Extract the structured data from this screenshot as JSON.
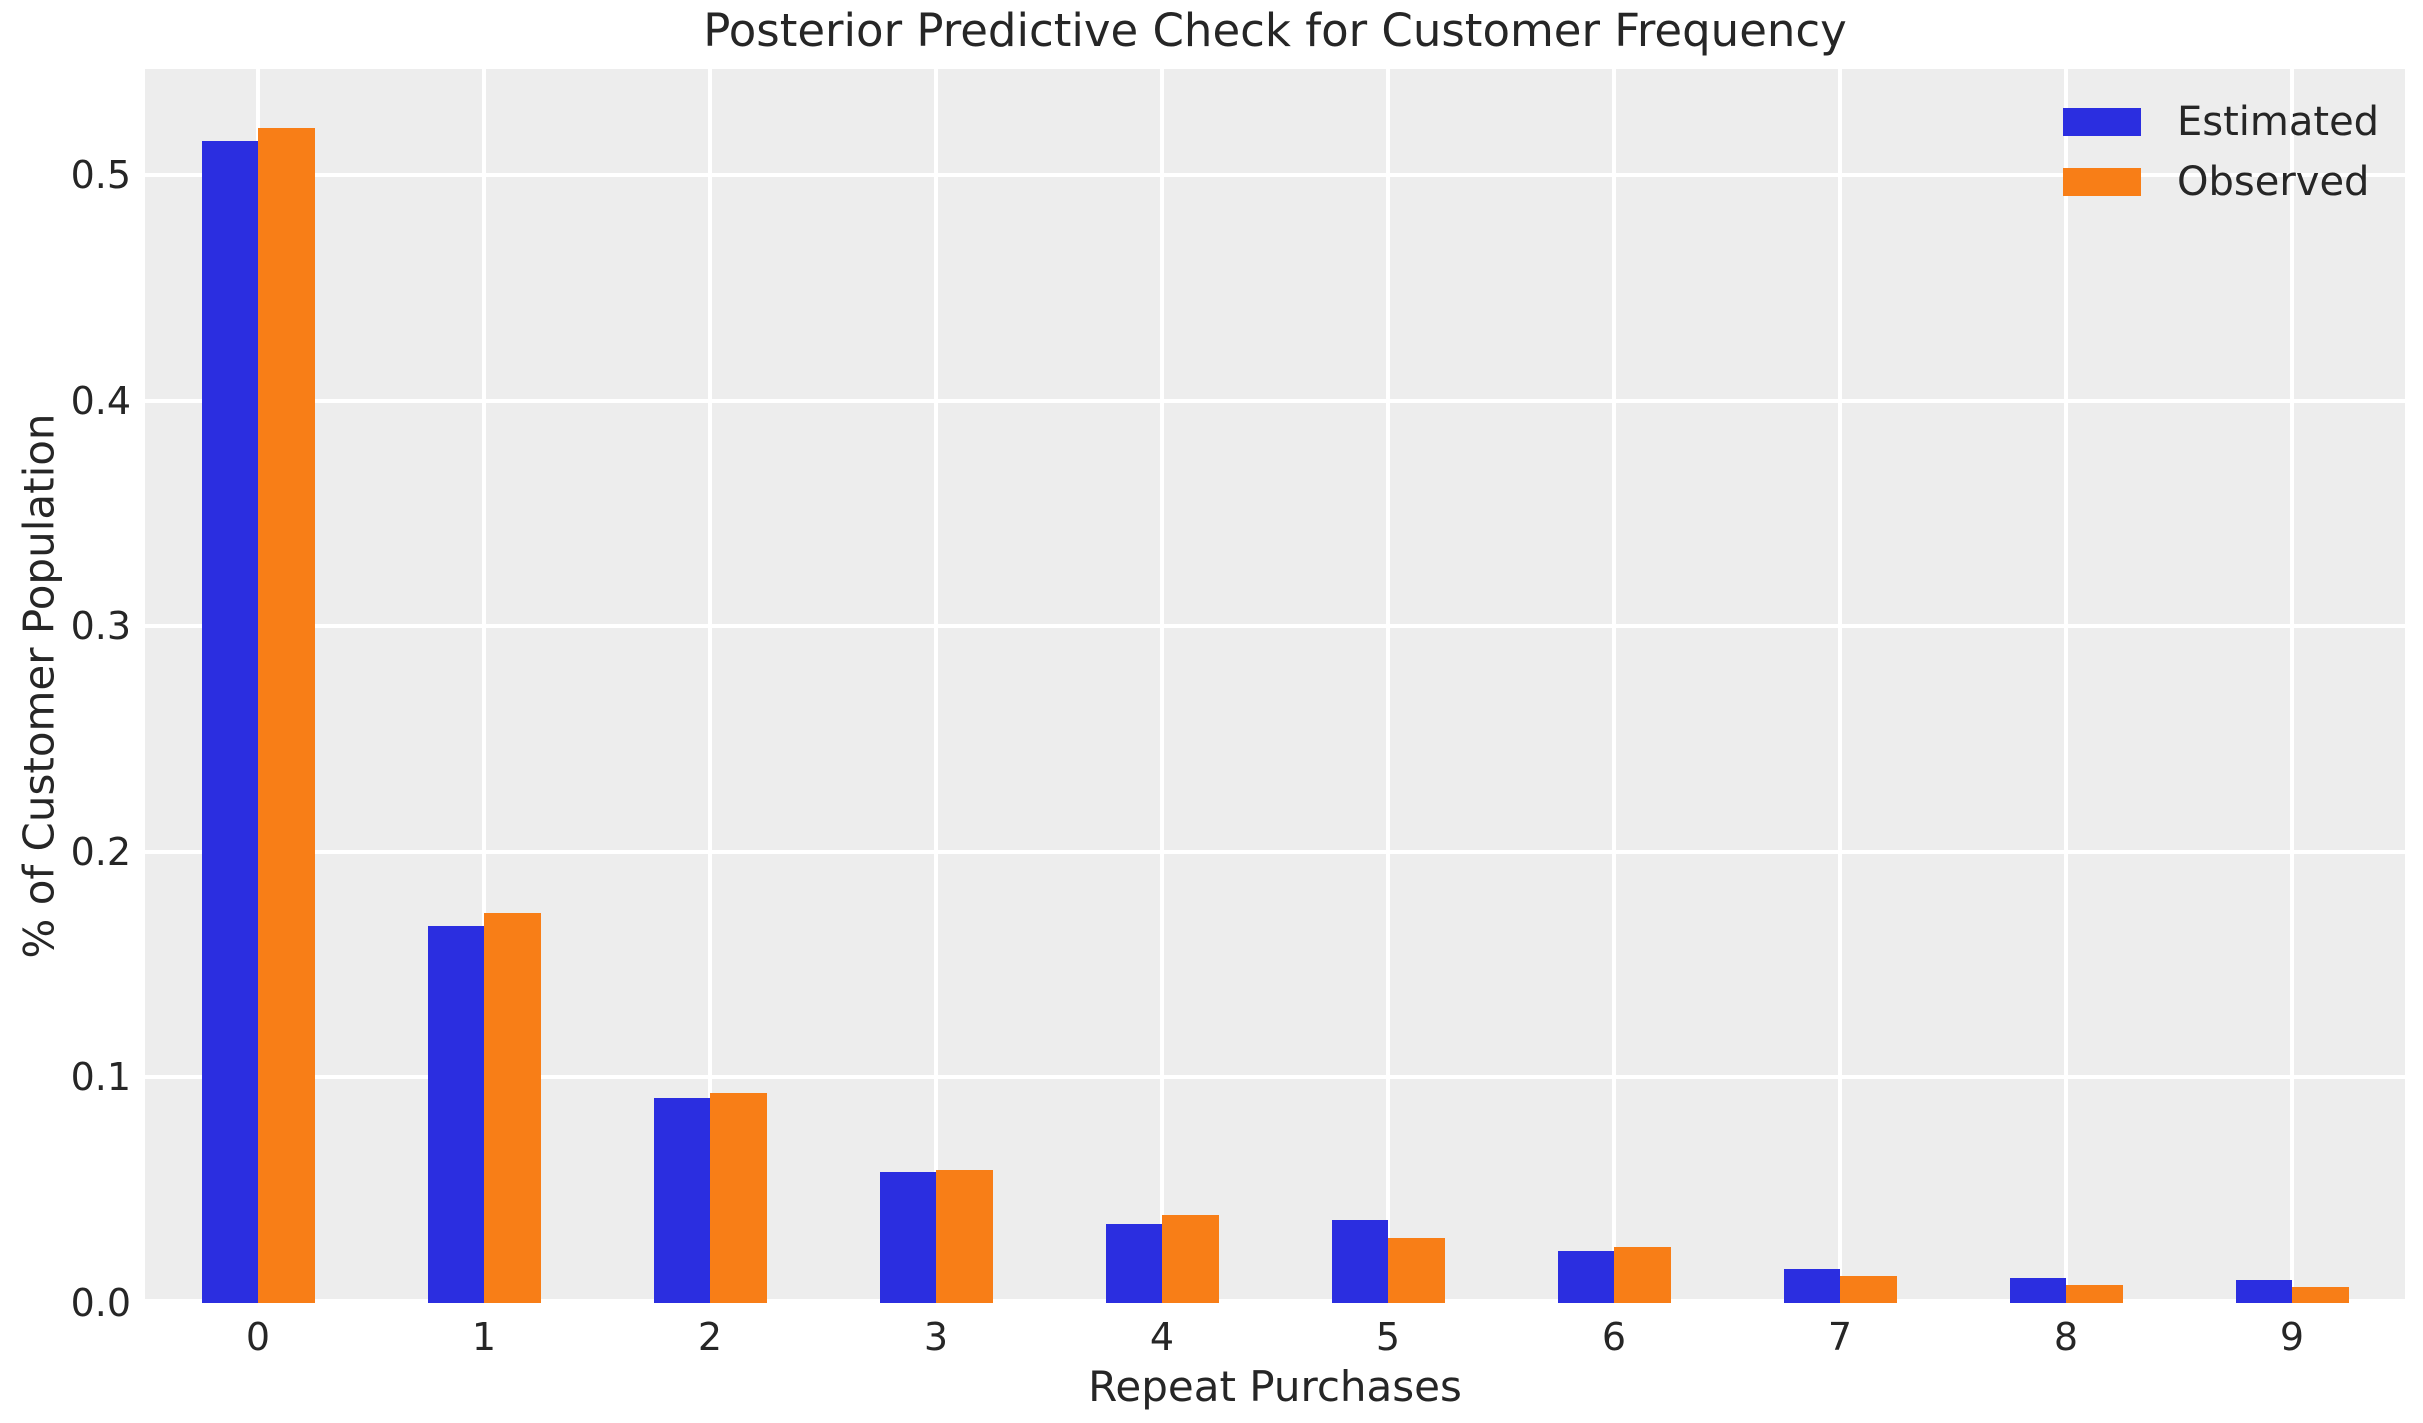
{
  "chart_data": {
    "type": "bar",
    "title": "Posterior Predictive Check for Customer Frequency",
    "xlabel": "Repeat Purchases",
    "ylabel": "% of Customer Population",
    "categories": [
      "0",
      "1",
      "2",
      "3",
      "4",
      "5",
      "6",
      "7",
      "8",
      "9"
    ],
    "series": [
      {
        "name": "Estimated",
        "color": "#2b2ee0",
        "values": [
          0.515,
          0.167,
          0.091,
          0.058,
          0.035,
          0.037,
          0.023,
          0.015,
          0.011,
          0.01
        ]
      },
      {
        "name": "Observed",
        "color": "#f87e17",
        "values": [
          0.521,
          0.173,
          0.093,
          0.059,
          0.039,
          0.029,
          0.025,
          0.012,
          0.008,
          0.007
        ]
      }
    ],
    "ylim": [
      0,
      0.547
    ],
    "yticks": [
      0.0,
      0.1,
      0.2,
      0.3,
      0.4,
      0.5
    ],
    "ytick_labels": [
      "0.0",
      "0.1",
      "0.2",
      "0.3",
      "0.4",
      "0.5"
    ],
    "grid": true,
    "legend_position": "upper right",
    "plot_background": "#ededed",
    "grid_color": "#ffffff",
    "text_color": "#262626",
    "bar_width_fraction": 0.25
  }
}
